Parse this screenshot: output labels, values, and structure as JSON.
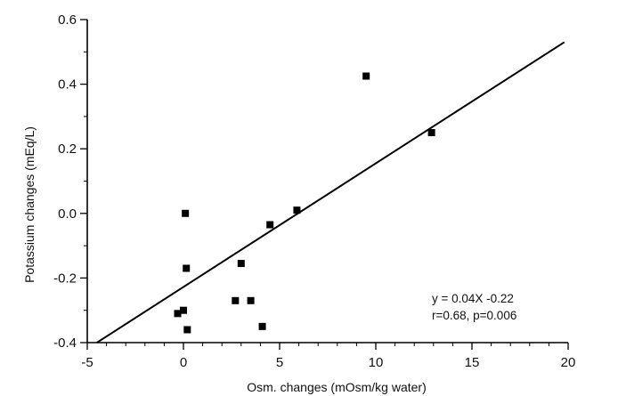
{
  "chart_data": {
    "type": "scatter",
    "title": "",
    "xlabel": "Osm. changes (mOsm/kg water)",
    "ylabel": "Potassium changes (mEq/L)",
    "xlim": [
      -5,
      20
    ],
    "ylim": [
      -0.4,
      0.6
    ],
    "x_ticks": [
      -5,
      0,
      5,
      10,
      15,
      20
    ],
    "x_tick_labels": [
      "-5",
      "0",
      "5",
      "10",
      "15",
      "20"
    ],
    "y_ticks": [
      -0.4,
      -0.2,
      0.0,
      0.2,
      0.4,
      0.6
    ],
    "y_tick_labels": [
      "-0.4",
      "-0.2",
      "0.0",
      "0.2",
      "0.4",
      "0.6"
    ],
    "grid": false,
    "points": [
      {
        "x": -0.3,
        "y": -0.31
      },
      {
        "x": 0.0,
        "y": -0.3
      },
      {
        "x": 0.1,
        "y": 0.0
      },
      {
        "x": 0.15,
        "y": -0.17
      },
      {
        "x": 0.2,
        "y": -0.36
      },
      {
        "x": 2.7,
        "y": -0.27
      },
      {
        "x": 3.0,
        "y": -0.155
      },
      {
        "x": 3.5,
        "y": -0.27
      },
      {
        "x": 4.1,
        "y": -0.35
      },
      {
        "x": 4.5,
        "y": -0.035
      },
      {
        "x": 5.9,
        "y": 0.01
      },
      {
        "x": 9.5,
        "y": 0.425
      },
      {
        "x": 12.9,
        "y": 0.25
      }
    ],
    "fit_line": {
      "x": [
        -4.5,
        19.8
      ],
      "y": [
        -0.4,
        0.53
      ]
    },
    "annotation": [
      "y = 0.04X -0.22",
      "r=0.68, p=0.006"
    ]
  }
}
